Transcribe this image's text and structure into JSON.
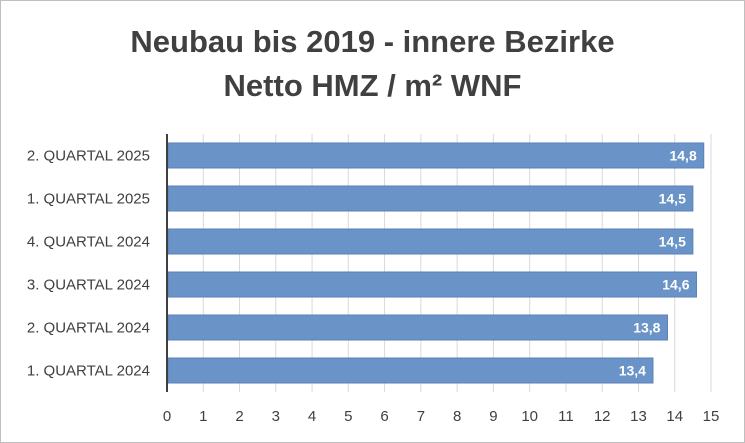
{
  "chart_data": {
    "type": "bar",
    "orientation": "horizontal",
    "title": "Neubau bis 2019 - innere Bezirke",
    "subtitle": "Netto HMZ / m² WNF",
    "categories": [
      "2. QUARTAL 2025",
      "1. QUARTAL 2025",
      "4. QUARTAL 2024",
      "3. QUARTAL 2024",
      "2. QUARTAL 2024",
      "1. QUARTAL 2024"
    ],
    "values": [
      14.8,
      14.5,
      14.5,
      14.6,
      13.8,
      13.4
    ],
    "data_labels": [
      "14,8",
      "14,5",
      "14,5",
      "14,6",
      "13,8",
      "13,4"
    ],
    "x_ticks": [
      "0",
      "1",
      "2",
      "3",
      "4",
      "5",
      "6",
      "7",
      "8",
      "9",
      "10",
      "11",
      "12",
      "13",
      "14",
      "15"
    ],
    "xlim": [
      0,
      15
    ],
    "xlabel": "",
    "ylabel": "",
    "grid": "vertical",
    "legend": "none",
    "colors": {
      "bar": "#6a93c8",
      "bar_edge": "#5a82b8",
      "grid": "#d9d9d9",
      "axis": "#404040",
      "text": "#404040"
    }
  }
}
